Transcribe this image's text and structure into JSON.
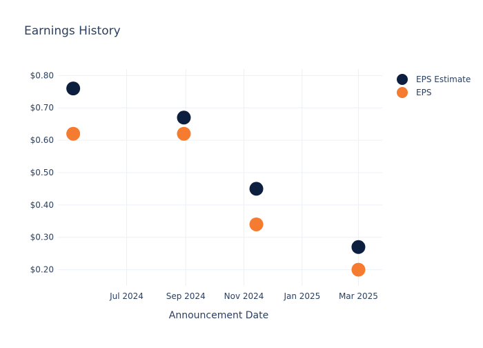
{
  "chart_data": {
    "type": "scatter",
    "title": "Earnings History",
    "xlabel": "Announcement Date",
    "ylabel": "",
    "x_ticks": [
      {
        "date": "2024-07-01",
        "label": "Jul 2024"
      },
      {
        "date": "2024-09-01",
        "label": "Sep 2024"
      },
      {
        "date": "2024-11-01",
        "label": "Nov 2024"
      },
      {
        "date": "2025-01-01",
        "label": "Jan 2025"
      },
      {
        "date": "2025-03-01",
        "label": "Mar 2025"
      }
    ],
    "y_ticks": [
      0.2,
      0.3,
      0.4,
      0.5,
      0.6,
      0.7,
      0.8
    ],
    "y_tick_labels": [
      "$0.20",
      "$0.30",
      "$0.40",
      "$0.50",
      "$0.60",
      "$0.70",
      "$0.80"
    ],
    "xlim": [
      "2024-04-20",
      "2025-03-26"
    ],
    "ylim": [
      0.15,
      0.82
    ],
    "grid": true,
    "legend_position": "top-right",
    "series": [
      {
        "name": "EPS Estimate",
        "color": "#0c1f3f",
        "points": [
          {
            "x": "2024-05-06",
            "y": 0.76
          },
          {
            "x": "2024-08-30",
            "y": 0.67
          },
          {
            "x": "2024-11-14",
            "y": 0.45
          },
          {
            "x": "2025-03-01",
            "y": 0.27
          }
        ]
      },
      {
        "name": "EPS",
        "color": "#f47b2f",
        "points": [
          {
            "x": "2024-05-06",
            "y": 0.62
          },
          {
            "x": "2024-08-30",
            "y": 0.62
          },
          {
            "x": "2024-11-14",
            "y": 0.34
          },
          {
            "x": "2025-03-01",
            "y": 0.2
          }
        ]
      }
    ]
  }
}
